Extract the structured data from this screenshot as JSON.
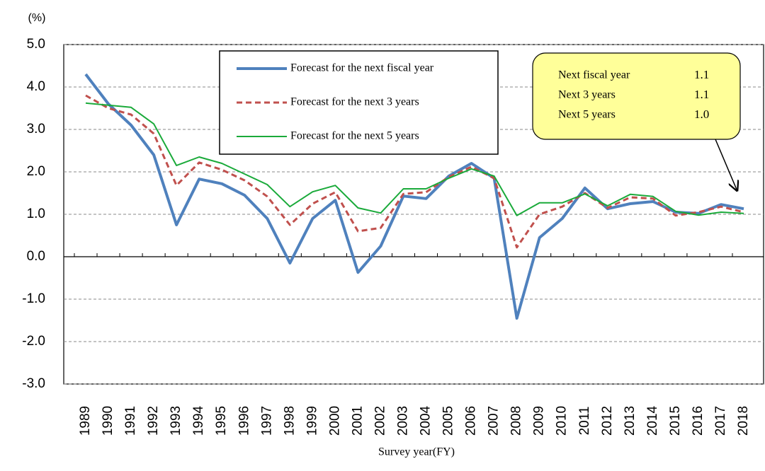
{
  "chart_data": {
    "type": "line",
    "y_unit_label": "(%)",
    "x_label": "Survey year(FY)",
    "categories": [
      "1989",
      "1990",
      "1991",
      "1992",
      "1993",
      "1994",
      "1995",
      "1996",
      "1997",
      "1998",
      "1999",
      "2000",
      "2001",
      "2002",
      "2003",
      "2004",
      "2005",
      "2006",
      "2007",
      "2008",
      "2009",
      "2010",
      "2011",
      "2012",
      "2013",
      "2014",
      "2015",
      "2016",
      "2017",
      "2018"
    ],
    "series": [
      {
        "name": "Forecast for the next fiscal year",
        "color": "#4f81bd",
        "dash": "none",
        "width": 4,
        "values": [
          4.3,
          3.6,
          3.1,
          2.4,
          0.75,
          1.83,
          1.72,
          1.45,
          0.9,
          -0.15,
          0.9,
          1.33,
          -0.37,
          0.25,
          1.43,
          1.37,
          1.9,
          2.2,
          1.85,
          -1.45,
          0.45,
          0.9,
          1.62,
          1.13,
          1.25,
          1.3,
          1.05,
          1.02,
          1.23,
          1.13
        ]
      },
      {
        "name": "Forecast for the next 3 years",
        "color": "#c0504d",
        "dash": "8 5",
        "width": 3,
        "values": [
          3.8,
          3.5,
          3.35,
          2.9,
          1.68,
          2.22,
          2.05,
          1.8,
          1.42,
          0.75,
          1.25,
          1.52,
          0.6,
          0.68,
          1.48,
          1.52,
          1.88,
          2.12,
          1.85,
          0.22,
          1.0,
          1.18,
          1.5,
          1.15,
          1.4,
          1.37,
          0.97,
          1.05,
          1.18,
          1.05
        ]
      },
      {
        "name": "Forecast for the next 5 years",
        "color": "#1aaa3a",
        "dash": "none",
        "width": 2,
        "values": [
          3.62,
          3.57,
          3.52,
          3.13,
          2.15,
          2.35,
          2.2,
          1.95,
          1.7,
          1.18,
          1.53,
          1.68,
          1.15,
          1.03,
          1.6,
          1.6,
          1.85,
          2.07,
          1.9,
          0.97,
          1.27,
          1.27,
          1.48,
          1.2,
          1.47,
          1.42,
          1.07,
          0.98,
          1.05,
          1.02
        ]
      }
    ],
    "ylim": [
      -3,
      5
    ],
    "yticks": [
      {
        "value": -3,
        "label": "-3.0"
      },
      {
        "value": -2,
        "label": "-2.0"
      },
      {
        "value": -1,
        "label": "-1.0"
      },
      {
        "value": 0,
        "label": "0.0"
      },
      {
        "value": 1,
        "label": "1.0"
      },
      {
        "value": 2,
        "label": "2.0"
      },
      {
        "value": 3,
        "label": "3.0"
      },
      {
        "value": 4,
        "label": "4.0"
      },
      {
        "value": 5,
        "label": "5.0"
      }
    ],
    "grid": true,
    "annotation": [
      {
        "label": "Next fiscal  year",
        "value": "1.1"
      },
      {
        "label": "Next 3 years",
        "value": "1.1"
      },
      {
        "label": "Next 5 years",
        "value": "1.0"
      }
    ]
  }
}
